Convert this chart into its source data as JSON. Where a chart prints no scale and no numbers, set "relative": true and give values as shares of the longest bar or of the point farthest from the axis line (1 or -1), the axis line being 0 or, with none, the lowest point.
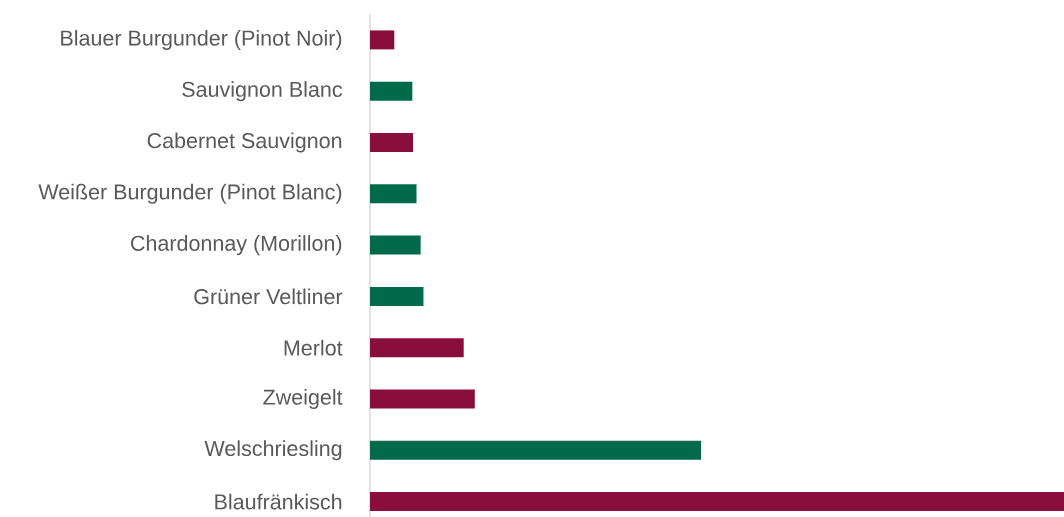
{
  "chart_data": {
    "type": "bar",
    "orientation": "horizontal",
    "relative": true,
    "categories": [
      "Blauer Burgunder (Pinot Noir)",
      "Sauvignon Blanc",
      "Cabernet Sauvignon",
      "Weißer Burgunder (Pinot Blanc)",
      "Chardonnay (Morillon)",
      "Grüner Veltliner",
      "Merlot",
      "Zweigelt",
      "Welschriesling",
      "Blaufränkisch"
    ],
    "values": [
      0.035,
      0.061,
      0.062,
      0.067,
      0.073,
      0.077,
      0.135,
      0.151,
      0.477,
      1
    ],
    "colors": [
      "#8a0e3c",
      "#006a4a",
      "#8a0e3c",
      "#006a4a",
      "#006a4a",
      "#006a4a",
      "#8a0e3c",
      "#8a0e3c",
      "#006a4a",
      "#8a0e3c"
    ]
  }
}
